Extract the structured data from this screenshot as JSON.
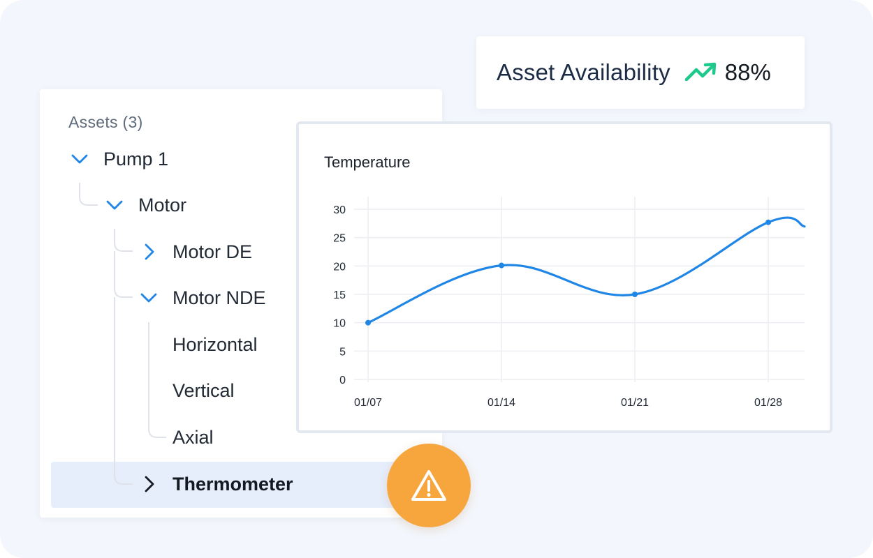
{
  "tree": {
    "title": "Assets (3)",
    "items": [
      {
        "label": "Pump 1",
        "state": "expanded"
      },
      {
        "label": "Motor",
        "state": "expanded"
      },
      {
        "label": "Motor DE",
        "state": "collapsed"
      },
      {
        "label": "Motor NDE",
        "state": "expanded"
      },
      {
        "label": "Horizontal",
        "state": "leaf"
      },
      {
        "label": "Vertical",
        "state": "leaf"
      },
      {
        "label": "Axial",
        "state": "leaf"
      },
      {
        "label": "Thermometer",
        "state": "collapsed",
        "selected": true
      }
    ]
  },
  "availability": {
    "label": "Asset Availability",
    "value": "88%",
    "trend_icon": "trending-up-icon",
    "trend_color": "#1ec98c"
  },
  "alert": {
    "icon": "warning-icon",
    "color": "#f7a63e"
  },
  "colors": {
    "accent": "#1f86e6",
    "selected_bg": "#e6eefc"
  },
  "chart_data": {
    "type": "line",
    "title": "Temperature",
    "xlabel": "",
    "ylabel": "",
    "categories": [
      "01/07",
      "01/14",
      "01/21",
      "01/28"
    ],
    "yticks": [
      "0",
      "5",
      "10",
      "15",
      "20",
      "25",
      "30"
    ],
    "ylim": [
      0,
      30
    ],
    "series": [
      {
        "values": [
          10,
          20.1,
          15,
          27.7
        ],
        "color": "#1f86e6"
      }
    ],
    "grid": true
  }
}
